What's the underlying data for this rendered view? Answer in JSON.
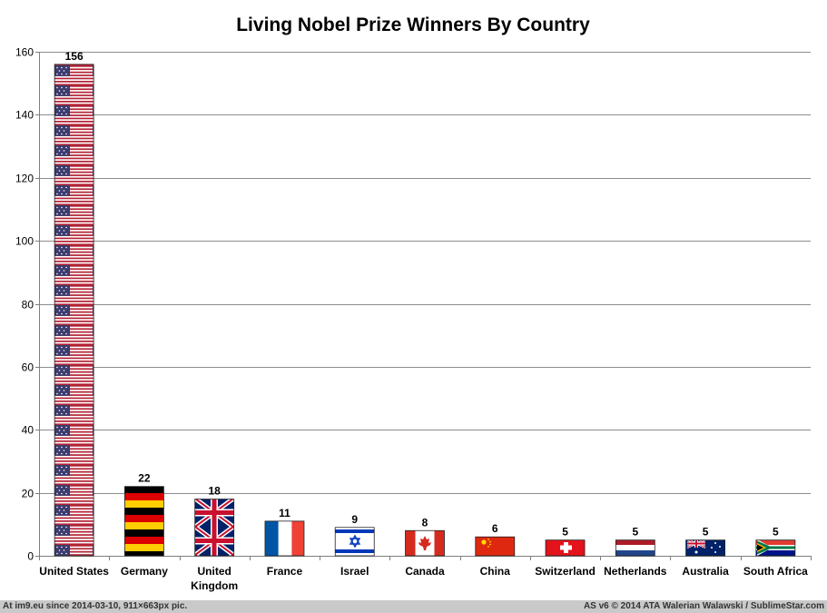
{
  "chart_data": {
    "type": "bar",
    "title": "Living Nobel Prize Winners By Country",
    "xlabel": "",
    "ylabel": "",
    "ylim": [
      0,
      160
    ],
    "yticks": [
      0,
      20,
      40,
      60,
      80,
      100,
      120,
      140,
      160
    ],
    "grid": true,
    "legend": "none",
    "categories": [
      "United States",
      "Germany",
      "United Kingdom",
      "France",
      "Israel",
      "Canada",
      "China",
      "Switzerland",
      "Netherlands",
      "Australia",
      "South Africa"
    ],
    "category_lines": [
      [
        "United States"
      ],
      [
        "Germany"
      ],
      [
        "United",
        "Kingdom"
      ],
      [
        "France"
      ],
      [
        "Israel"
      ],
      [
        "Canada"
      ],
      [
        "China"
      ],
      [
        "Switzerland"
      ],
      [
        "Netherlands"
      ],
      [
        "Australia"
      ],
      [
        "South Africa"
      ]
    ],
    "values": [
      156,
      22,
      18,
      11,
      9,
      8,
      6,
      5,
      5,
      5,
      5
    ],
    "bar_fill": [
      "us-flag",
      "de-flag",
      "uk-flag",
      "fr-flag",
      "il-flag",
      "ca-flag",
      "cn-flag",
      "ch-flag",
      "nl-flag",
      "au-flag",
      "za-flag"
    ]
  },
  "footer": {
    "left": "At im9.eu  since 2014-03-10, 911×663px pic.",
    "right": "AS v6 © 2014 ATA Walerian Walawski / SublimeStar.com"
  },
  "colors": {
    "grid": "#8c8c8c",
    "axis": "#7f7f7f",
    "text": "#000000",
    "footer_bg": "#c9c9c9"
  }
}
